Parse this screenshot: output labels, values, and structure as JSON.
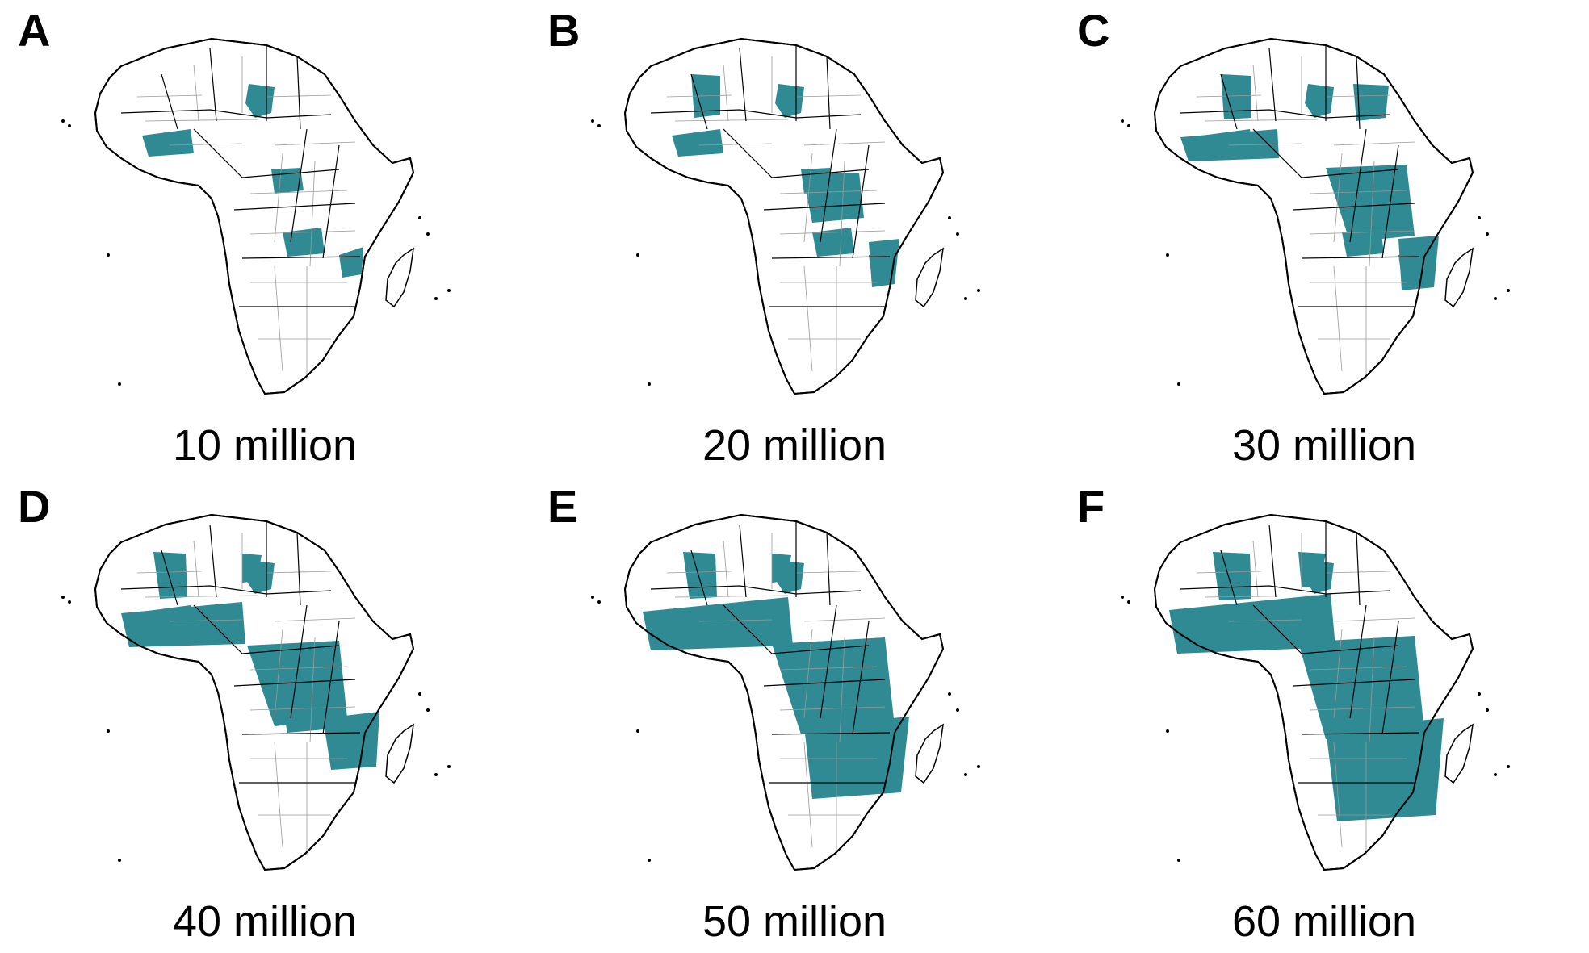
{
  "figure": {
    "colors": {
      "highlight": "#2f8a93",
      "land": "#ffffff",
      "country_border": "#000000",
      "district_border": "#9a9a9a"
    },
    "panels": [
      {
        "letter": "A",
        "caption": "10 million",
        "icon": "africa-map"
      },
      {
        "letter": "B",
        "caption": "20 million",
        "icon": "africa-map"
      },
      {
        "letter": "C",
        "caption": "30 million",
        "icon": "africa-map"
      },
      {
        "letter": "D",
        "caption": "40 million",
        "icon": "africa-map"
      },
      {
        "letter": "E",
        "caption": "50 million",
        "icon": "africa-map"
      },
      {
        "letter": "F",
        "caption": "60 million",
        "icon": "africa-map"
      }
    ]
  }
}
